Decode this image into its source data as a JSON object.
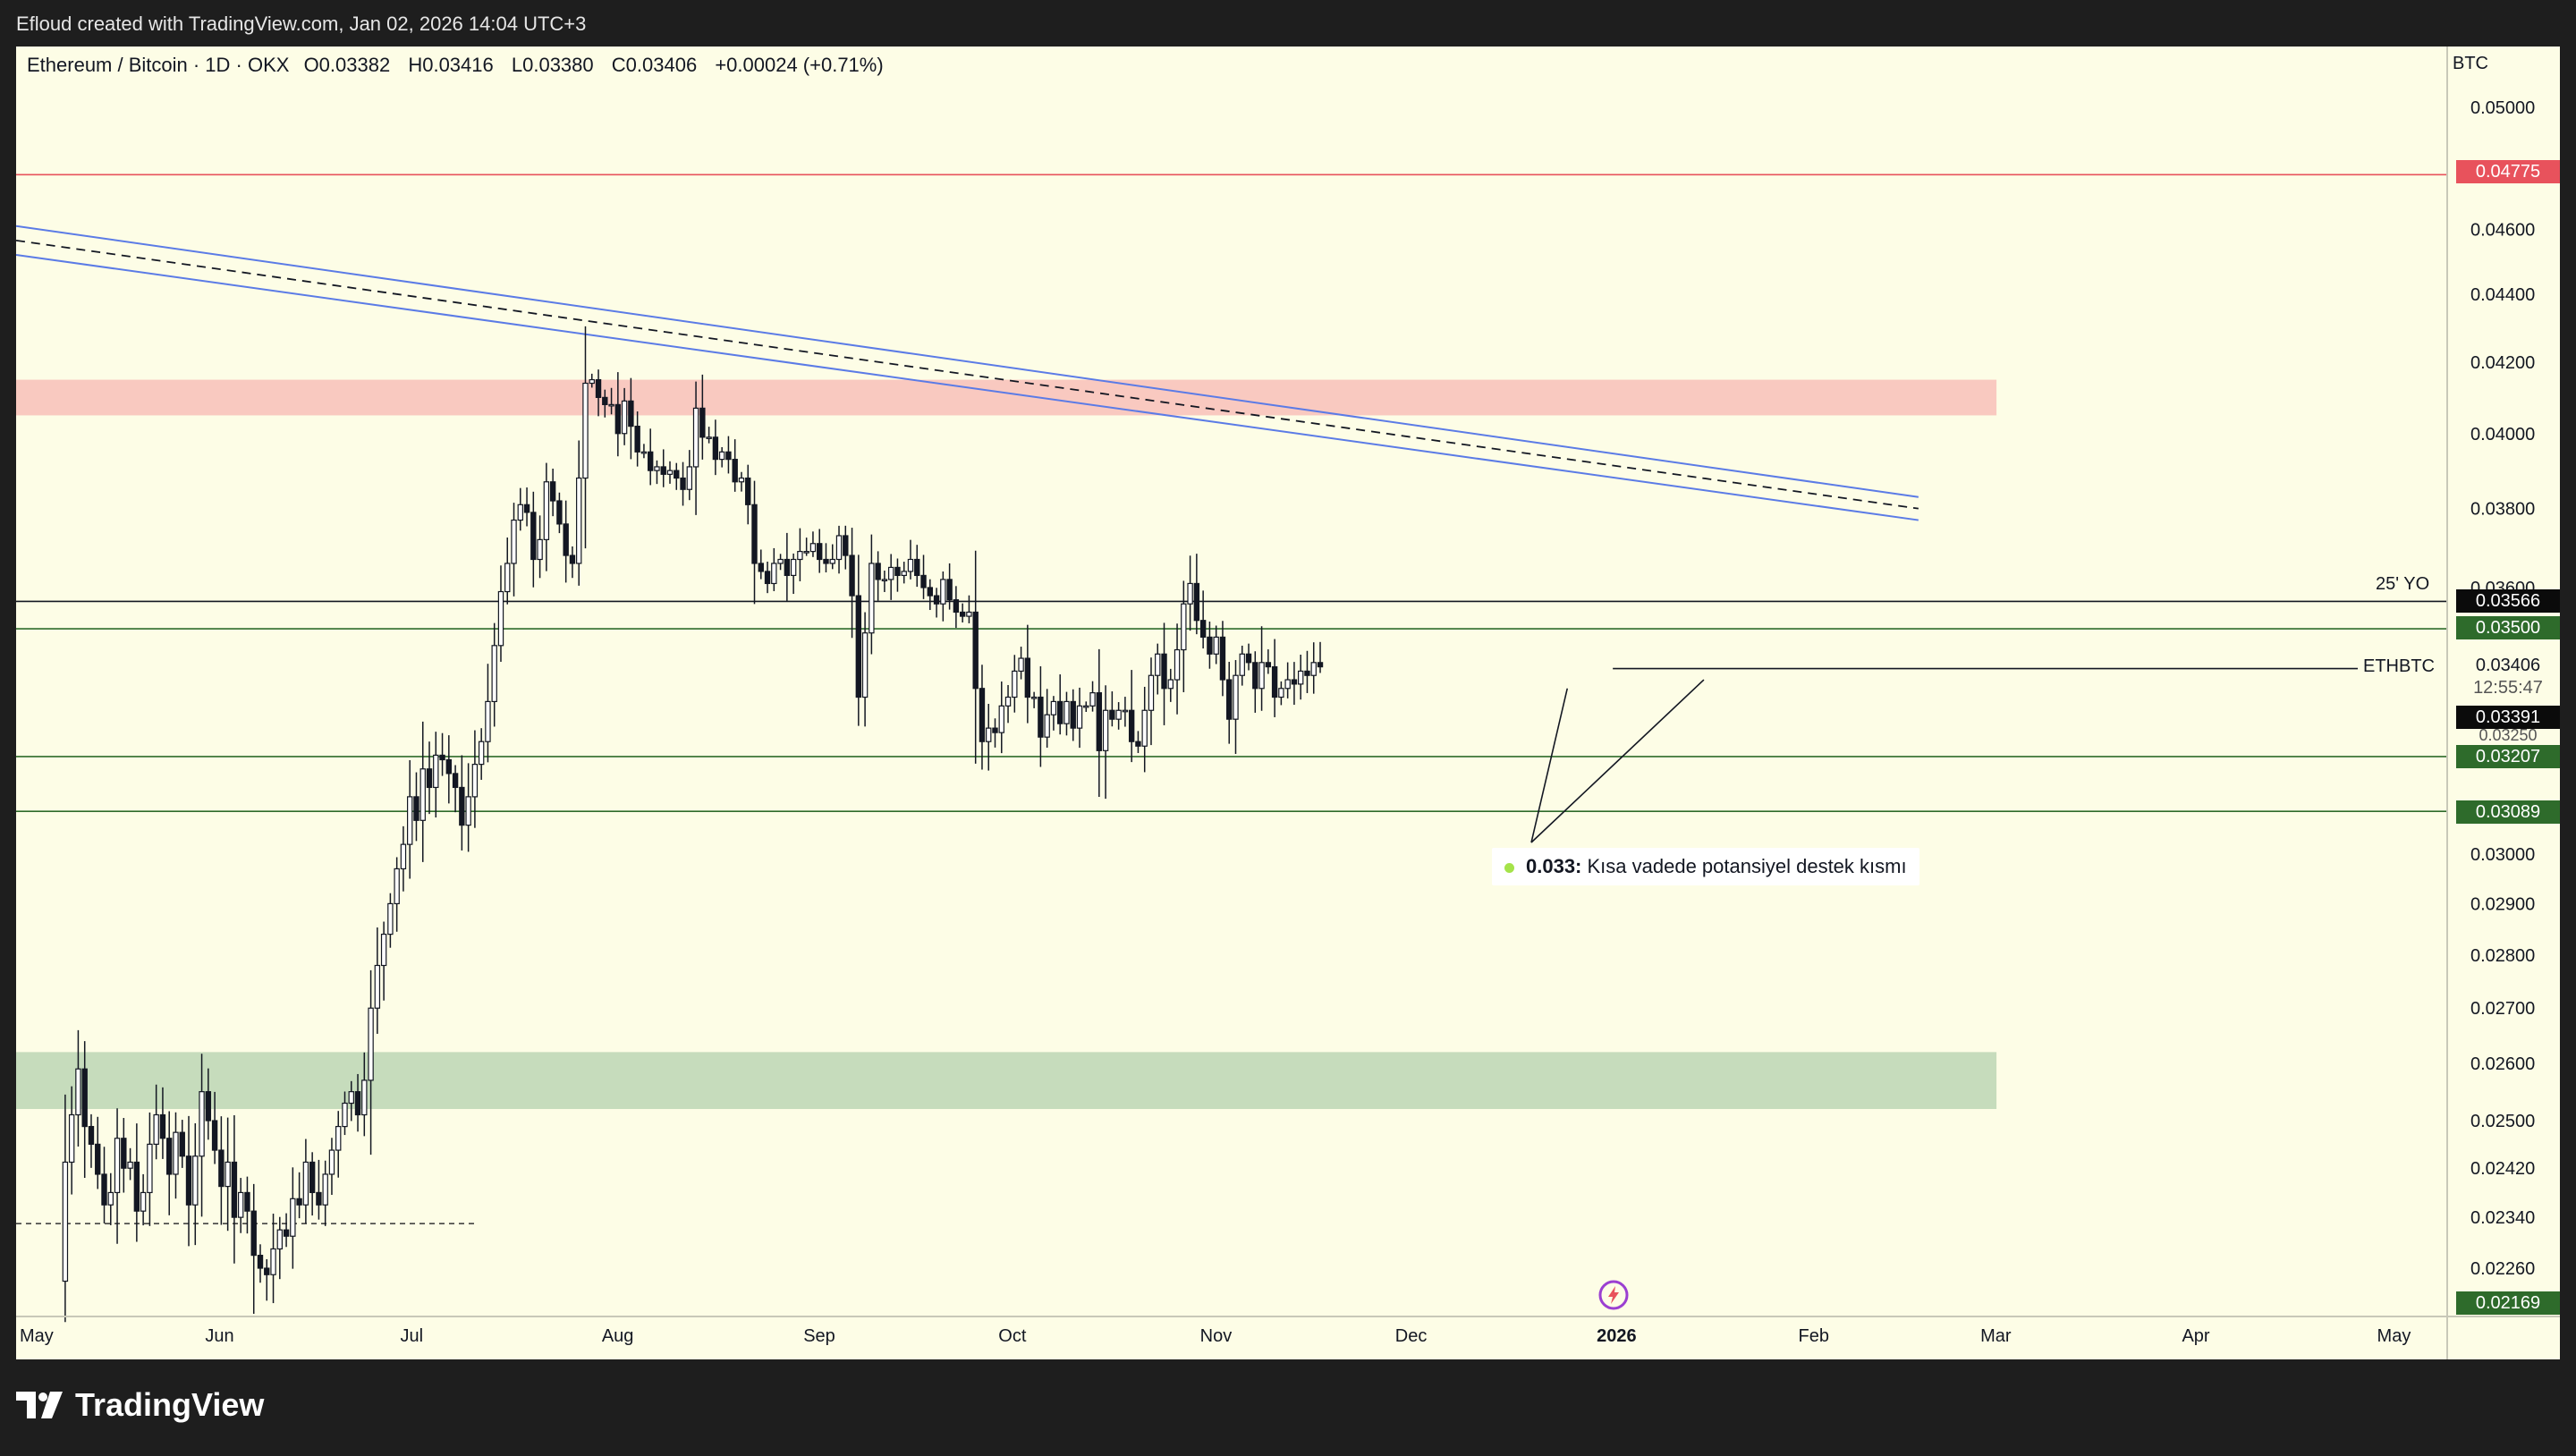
{
  "header": {
    "attribution": "Efloud created with TradingView.com, Jan 02, 2026 14:04 UTC+3"
  },
  "legend": {
    "symbol": "Ethereum / Bitcoin · 1D · OKX",
    "open": "O0.03382",
    "high": "H0.03416",
    "low": "L0.03380",
    "close": "C0.03406",
    "change": "+0.00024 (+0.71%)"
  },
  "currency": "BTC",
  "annotation": {
    "bold": "0.033:",
    "text": " Kısa vadede potansiyel destek kısmı",
    "dot_color": "#a5e34a"
  },
  "line_labels": {
    "yo25": "25' YO",
    "ethbtc": "ETHBTC"
  },
  "price_tags": {
    "red_line": "0.04775",
    "yo_line": "0.03566",
    "green_350": "0.03500",
    "last_price": "0.03406",
    "countdown": "12:55:47",
    "bid": "0.03391",
    "hidden_partial": "0.03250",
    "green_3207": "0.03207",
    "green_3089": "0.03089",
    "bottom": "0.02169"
  },
  "colors": {
    "background": "#fdfde6",
    "red_line": "#e8525c",
    "red_zone": "#f9c9c0",
    "green_zone": "#c6dcbc",
    "channel": "#5b7be6",
    "green_tag": "#2e6b2b",
    "black_tag": "#0b0b0b"
  },
  "footer": {
    "brand": "TradingView"
  },
  "chart_data": {
    "type": "candlestick",
    "title": "Ethereum / Bitcoin · 1D · OKX",
    "y_axis_ticks": [
      "0.05000",
      "0.04600",
      "0.04400",
      "0.04200",
      "0.04000",
      "0.03800",
      "0.03600",
      "0.03000",
      "0.02900",
      "0.02800",
      "0.02700",
      "0.02600",
      "0.02500",
      "0.02420",
      "0.02340",
      "0.02260"
    ],
    "x_axis_ticks": [
      "May",
      "Jun",
      "Jul",
      "Aug",
      "Sep",
      "Oct",
      "Nov",
      "Dec",
      "2026",
      "Feb",
      "Mar",
      "Apr",
      "May"
    ],
    "ylim": [
      0.0215,
      0.0512
    ],
    "scale": "log",
    "horizontal_lines": [
      {
        "value": 0.04775,
        "color": "red"
      },
      {
        "value": 0.03566,
        "label": "25' YO"
      },
      {
        "value": 0.035,
        "color": "green"
      },
      {
        "value": 0.03207,
        "color": "green"
      },
      {
        "value": 0.03089,
        "color": "green"
      },
      {
        "value": 0.03406,
        "label": "ETHBTC"
      }
    ],
    "zones": [
      {
        "from": 0.0405,
        "to": 0.0415,
        "color": "red",
        "start": "May",
        "end": "Mar"
      },
      {
        "from": 0.0252,
        "to": 0.0262,
        "color": "green",
        "start": "May",
        "end": "Mar"
      }
    ],
    "channel": {
      "start_date": "May",
      "start_value": 0.046,
      "end_date": "Feb 18",
      "end_value": 0.0382
    },
    "closes": [
      0.0224,
      0.0243,
      0.0251,
      0.0259,
      0.0249,
      0.0246,
      0.0241,
      0.0236,
      0.0238,
      0.0247,
      0.0242,
      0.0243,
      0.0235,
      0.0238,
      0.0246,
      0.0251,
      0.0247,
      0.0241,
      0.0248,
      0.0244,
      0.0236,
      0.0244,
      0.0255,
      0.025,
      0.0245,
      0.0239,
      0.0243,
      0.0234,
      0.0238,
      0.0235,
      0.0228,
      0.0226,
      0.0225,
      0.0229,
      0.0232,
      0.0231,
      0.0237,
      0.0236,
      0.0243,
      0.0238,
      0.0236,
      0.0241,
      0.0245,
      0.0249,
      0.0253,
      0.0255,
      0.0251,
      0.0257,
      0.027,
      0.0278,
      0.0284,
      0.029,
      0.0297,
      0.0302,
      0.0312,
      0.0307,
      0.0318,
      0.0314,
      0.0321,
      0.032,
      0.0317,
      0.0314,
      0.0306,
      0.0312,
      0.0319,
      0.0324,
      0.0333,
      0.0346,
      0.0359,
      0.0366,
      0.0377,
      0.0381,
      0.0379,
      0.0367,
      0.0372,
      0.0387,
      0.0382,
      0.0376,
      0.0368,
      0.0366,
      0.0388,
      0.0414,
      0.0415,
      0.041,
      0.0408,
      0.0408,
      0.04,
      0.0409,
      0.0402,
      0.0395,
      0.0395,
      0.039,
      0.0391,
      0.0389,
      0.039,
      0.0388,
      0.0385,
      0.0391,
      0.0407,
      0.0399,
      0.0399,
      0.0393,
      0.0395,
      0.0393,
      0.0387,
      0.0388,
      0.0381,
      0.0366,
      0.0364,
      0.0361,
      0.0366,
      0.0367,
      0.0363,
      0.0367,
      0.0369,
      0.0369,
      0.0371,
      0.0367,
      0.0366,
      0.0367,
      0.0373,
      0.0368,
      0.0358,
      0.0334,
      0.0349,
      0.0366,
      0.0362,
      0.0362,
      0.0365,
      0.0363,
      0.0364,
      0.0367,
      0.0363,
      0.036,
      0.0358,
      0.0356,
      0.0362,
      0.0357,
      0.0354,
      0.0353,
      0.0354,
      0.0336,
      0.0324,
      0.0327,
      0.0326,
      0.0332,
      0.0334,
      0.034,
      0.0343,
      0.0334,
      0.0334,
      0.0325,
      0.033,
      0.0333,
      0.0328,
      0.0333,
      0.0327,
      0.0332,
      0.0332,
      0.0335,
      0.0322,
      0.0331,
      0.0329,
      0.0331,
      0.0331,
      0.0324,
      0.0323,
      0.0331,
      0.0339,
      0.0344,
      0.0336,
      0.0338,
      0.0345,
      0.0356,
      0.0361,
      0.0352,
      0.0348,
      0.0344,
      0.0348,
      0.0338,
      0.0329,
      0.0339,
      0.0344,
      0.0342,
      0.0336,
      0.0342,
      0.0341,
      0.0334,
      0.0336,
      0.0338,
      0.0337,
      0.034,
      0.0339,
      0.0342,
      0.0341
    ]
  }
}
